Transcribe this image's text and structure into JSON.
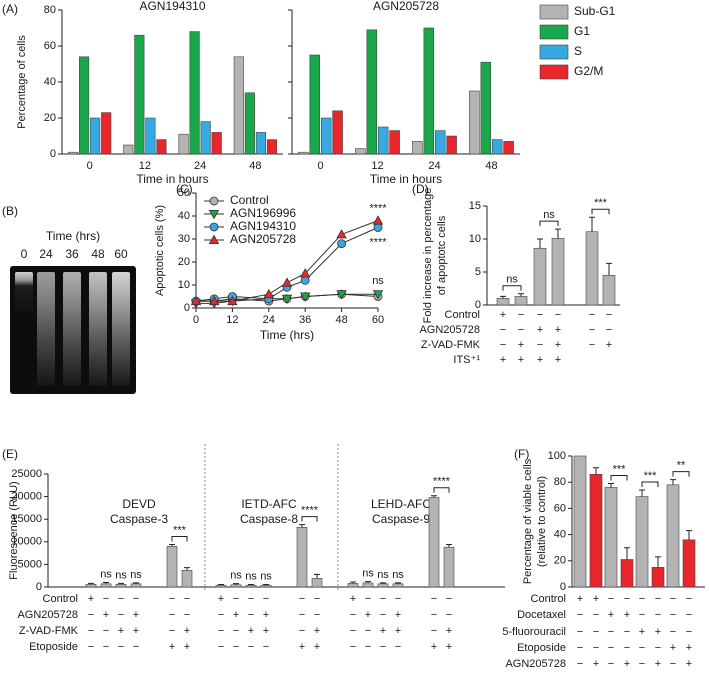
{
  "chart_data": [
    {
      "type": "bar",
      "panel": "(A)",
      "title": "AGN194310",
      "x_label": "Time in hours",
      "y_label": "Percentage of cells",
      "categories": [
        "0",
        "12",
        "24",
        "48"
      ],
      "ylim": [
        0,
        80
      ],
      "yticks": [
        0,
        20,
        40,
        60,
        80
      ],
      "series": [
        {
          "name": "Sub-G1",
          "color": "#b3b3b3",
          "values": [
            1,
            5,
            11,
            54
          ]
        },
        {
          "name": "G1",
          "color": "#1aa64a",
          "values": [
            54,
            66,
            68,
            34
          ]
        },
        {
          "name": "S",
          "color": "#36a9e1",
          "values": [
            20,
            20,
            18,
            12
          ]
        },
        {
          "name": "G2/M",
          "color": "#e8262b",
          "values": [
            23,
            8,
            12,
            8
          ]
        }
      ]
    },
    {
      "type": "bar",
      "title": "AGN205728",
      "x_label": "Time in hours",
      "show_tick_labels": false,
      "categories": [
        "0",
        "12",
        "24",
        "48"
      ],
      "ylim": [
        0,
        80
      ],
      "yticks": [
        0,
        20,
        40,
        60,
        80
      ],
      "series": [
        {
          "color": "#b3b3b3",
          "values": [
            1,
            3,
            7,
            35
          ]
        },
        {
          "color": "#1aa64a",
          "values": [
            55,
            69,
            70,
            51
          ]
        },
        {
          "color": "#36a9e1",
          "values": [
            20,
            15,
            13,
            8
          ]
        },
        {
          "color": "#e8262b",
          "values": [
            24,
            13,
            10,
            7
          ]
        }
      ]
    },
    {
      "type": "gel",
      "panel": "(B)",
      "title": "Time (hrs)",
      "categories": [
        "0",
        "24",
        "36",
        "48",
        "60"
      ]
    },
    {
      "type": "line",
      "panel": "(C)",
      "x_label": "Time (hrs)",
      "y_label": "Apoptotic cells (%)",
      "x": [
        0,
        6,
        12,
        24,
        30,
        36,
        48,
        60
      ],
      "xlim": [
        0,
        60
      ],
      "xticks": [
        0,
        12,
        24,
        36,
        48,
        60
      ],
      "ylim": [
        0,
        50
      ],
      "yticks": [
        0,
        10,
        20,
        30,
        40,
        50
      ],
      "legend": "upper left",
      "series": [
        {
          "name": "Control",
          "color": "#b3b3b3",
          "marker": "circle",
          "values": [
            3,
            3,
            4,
            3,
            4,
            5,
            6,
            5
          ]
        },
        {
          "name": "AGN196996",
          "color": "#1aa64a",
          "marker": "triangle-down",
          "values": [
            2,
            2,
            3,
            4,
            4,
            5,
            6,
            6
          ],
          "annotation": "ns"
        },
        {
          "name": "AGN194310",
          "color": "#36a9e1",
          "marker": "circle",
          "values": [
            3,
            4,
            5,
            4,
            9,
            12,
            28,
            35
          ],
          "annotation": "****"
        },
        {
          "name": "AGN205728",
          "color": "#e8262b",
          "marker": "triangle-up",
          "values": [
            3,
            3,
            3,
            6,
            11,
            15,
            32,
            38
          ],
          "annotation": "****"
        }
      ]
    },
    {
      "type": "bar",
      "panel": "(D)",
      "y_label": [
        "Fold increase in percentage",
        "of apoptotc cells"
      ],
      "color": "#b3b3b3",
      "ylim": [
        0,
        15
      ],
      "yticks": [
        0,
        5,
        10,
        15
      ],
      "groups": [
        {
          "values": [
            1.0,
            1.3
          ],
          "errors": [
            0.3,
            0.4
          ],
          "comparison": "ns"
        },
        {
          "values": [
            8.6,
            10.1
          ],
          "errors": [
            1.4,
            1.4
          ],
          "comparison": "ns"
        },
        {
          "values": [
            11.1,
            4.5
          ],
          "errors": [
            2.2,
            1.8
          ],
          "comparison": "***"
        }
      ],
      "conditions": [
        {
          "name": "Control",
          "marks": [
            "+",
            "−",
            "−",
            "−",
            "−",
            "−"
          ]
        },
        {
          "name": "AGN205728",
          "marks": [
            "−",
            "−",
            "+",
            "+",
            "−",
            "−"
          ]
        },
        {
          "name": "Z-VAD-FMK",
          "marks": [
            "−",
            "+",
            "−",
            "+",
            "−",
            "+"
          ]
        },
        {
          "name": "ITS⁺¹",
          "marks": [
            "+",
            "+",
            "+",
            "+",
            null,
            null
          ]
        }
      ]
    },
    {
      "type": "bar",
      "panel": "(E)",
      "y_label": "Fluorescence (RLU)",
      "color": "#b3b3b3",
      "ylim": [
        0,
        25000
      ],
      "yticks": [
        0,
        5000,
        10000,
        15000,
        20000,
        25000
      ],
      "groups": [
        {
          "title": [
            "DEVD",
            "Caspase-3"
          ],
          "values": [
            600,
            700,
            600,
            700,
            9000,
            3700
          ],
          "errors": [
            200,
            300,
            200,
            200,
            400,
            600
          ],
          "bar_labels": [
            null,
            "ns",
            "ns",
            "ns",
            null,
            null
          ],
          "comparison": "***"
        },
        {
          "title": [
            "IETD-AFC",
            "Caspase-8"
          ],
          "values": [
            400,
            500,
            400,
            400,
            13200,
            1900
          ],
          "errors": [
            150,
            250,
            150,
            150,
            600,
            900
          ],
          "bar_labels": [
            null,
            "ns",
            "ns",
            "ns",
            null,
            null
          ],
          "comparison": "****"
        },
        {
          "title": [
            "LEHD-AFC",
            "Caspase-9"
          ],
          "values": [
            800,
            900,
            700,
            700,
            19800,
            8800
          ],
          "errors": [
            300,
            300,
            200,
            200,
            400,
            600
          ],
          "bar_labels": [
            null,
            "ns",
            "ns",
            "ns",
            null,
            null
          ],
          "comparison": "****"
        }
      ],
      "conditions": [
        {
          "name": "Control",
          "marks": [
            "+",
            "−",
            "−",
            "−",
            "−",
            "−"
          ]
        },
        {
          "name": "AGN205728",
          "marks": [
            "−",
            "+",
            "−",
            "+",
            "−",
            "−"
          ]
        },
        {
          "name": "Z-VAD-FMK",
          "marks": [
            "−",
            "−",
            "+",
            "+",
            "−",
            "+"
          ]
        },
        {
          "name": "Etoposide",
          "marks": [
            "−",
            "−",
            "−",
            "−",
            "+",
            "+"
          ]
        }
      ]
    },
    {
      "type": "bar",
      "panel": "(F)",
      "y_label": [
        "Percentage of viable cells",
        "(relative to control)"
      ],
      "ylim": [
        0,
        100
      ],
      "yticks": [
        0,
        20,
        40,
        60,
        80,
        100
      ],
      "series": [
        {
          "color": "#b3b3b3",
          "values": [
            100,
            76,
            69,
            78
          ],
          "errors": [
            null,
            3,
            5,
            4
          ]
        },
        {
          "color": "#e8262b",
          "values": [
            86,
            21,
            15,
            36
          ],
          "errors": [
            5,
            9,
            8,
            7
          ]
        }
      ],
      "comparisons": [
        null,
        "***",
        "***",
        "**"
      ],
      "conditions": [
        {
          "name": "Control",
          "marks": [
            "+",
            "+",
            "−",
            "−",
            "−",
            "−",
            "−",
            "−"
          ]
        },
        {
          "name": "Docetaxel",
          "marks": [
            "−",
            "−",
            "+",
            "+",
            "−",
            "−",
            "−",
            "−"
          ]
        },
        {
          "name": "5-fluorouracil",
          "marks": [
            "−",
            "−",
            "−",
            "−",
            "+",
            "+",
            "−",
            "−"
          ]
        },
        {
          "name": "Etoposide",
          "marks": [
            "−",
            "−",
            "−",
            "−",
            "−",
            "−",
            "+",
            "+"
          ]
        },
        {
          "name": "AGN205728",
          "marks": [
            "−",
            "+",
            "−",
            "+",
            "−",
            "+",
            "−",
            "+"
          ]
        }
      ]
    }
  ]
}
